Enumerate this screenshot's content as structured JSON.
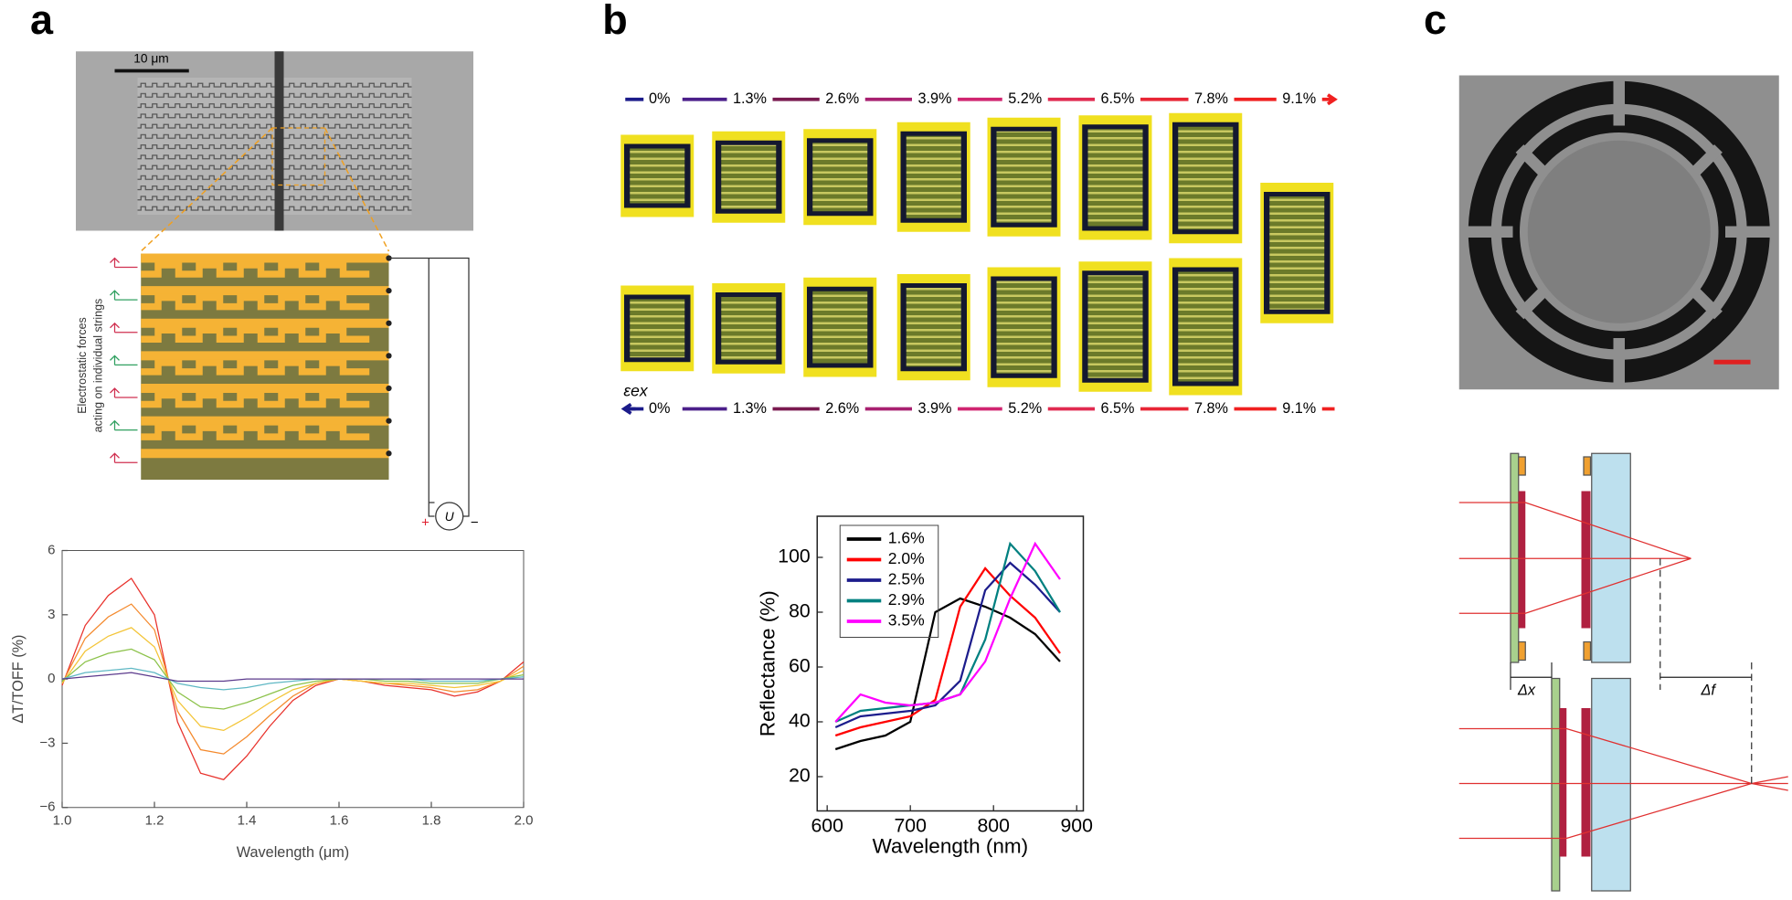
{
  "figure": {
    "panel_labels": [
      "a",
      "b",
      "c"
    ],
    "panel_a": {
      "scale_bar": "10 μm",
      "force_label": [
        "Electrostatic forces",
        "acting on individual strings"
      ],
      "source_label": "U",
      "plus": "+",
      "minus": "−"
    },
    "panel_b": {
      "strain_symbol": "εex",
      "strain_labels": [
        "0%",
        "1.3%",
        "2.6%",
        "3.9%",
        "5.2%",
        "6.5%",
        "7.8%",
        "9.1%"
      ]
    },
    "panel_c": {
      "shift_label": "Δx",
      "focus_label": "Δf"
    }
  },
  "chart_data": [
    {
      "type": "line",
      "x_label": "Wavelength (μm)",
      "y_label": "ΔT/TOFF (%)",
      "x": [
        1.0,
        1.05,
        1.1,
        1.15,
        1.2,
        1.25,
        1.3,
        1.35,
        1.4,
        1.45,
        1.5,
        1.55,
        1.6,
        1.65,
        1.7,
        1.75,
        1.8,
        1.85,
        1.9,
        1.95,
        2.0
      ],
      "xlim": [
        1,
        2
      ],
      "xticks": [
        {
          "value": 1,
          "label": "1.0"
        },
        1.2,
        1.4,
        1.6,
        1.8,
        {
          "value": 2,
          "label": "2.0"
        }
      ],
      "ylim": [
        -6,
        6
      ],
      "yticks": [
        {
          "value": -6,
          "label": "−6"
        },
        {
          "value": -3,
          "label": "−3"
        },
        0,
        3,
        6
      ],
      "series": [
        {
          "color": "#e8312b",
          "values": [
            -0.3,
            2.5,
            3.9,
            4.7,
            3.0,
            -2.0,
            -4.4,
            -4.7,
            -3.6,
            -2.2,
            -1.0,
            -0.3,
            0,
            -0.1,
            -0.3,
            -0.4,
            -0.5,
            -0.8,
            -0.6,
            -0.1,
            0.8
          ]
        },
        {
          "color": "#f4892c",
          "values": [
            -0.2,
            1.9,
            2.9,
            3.5,
            2.3,
            -1.5,
            -3.3,
            -3.5,
            -2.7,
            -1.7,
            -0.8,
            -0.2,
            0,
            -0.1,
            -0.2,
            -0.3,
            -0.4,
            -0.6,
            -0.5,
            -0.1,
            0.6
          ]
        },
        {
          "color": "#f3c436",
          "values": [
            -0.2,
            1.3,
            2.0,
            2.4,
            1.5,
            -1.0,
            -2.2,
            -2.4,
            -1.8,
            -1.1,
            -0.5,
            -0.2,
            0,
            -0.1,
            -0.2,
            -0.2,
            -0.3,
            -0.4,
            -0.3,
            -0.1,
            0.4
          ]
        },
        {
          "color": "#8cc24a",
          "values": [
            -0.1,
            0.8,
            1.2,
            1.4,
            0.9,
            -0.6,
            -1.3,
            -1.4,
            -1.1,
            -0.7,
            -0.3,
            -0.1,
            0,
            0,
            -0.1,
            -0.1,
            -0.2,
            -0.2,
            -0.2,
            0,
            0.2
          ]
        },
        {
          "color": "#5fb8c4",
          "values": [
            0,
            0.3,
            0.4,
            0.5,
            0.3,
            -0.2,
            -0.4,
            -0.5,
            -0.4,
            -0.2,
            -0.1,
            0,
            0,
            0,
            0,
            0,
            -0.1,
            -0.1,
            -0.1,
            0,
            0.1
          ]
        },
        {
          "color": "#5b3a8c",
          "values": [
            0,
            0.1,
            0.2,
            0.3,
            0.1,
            -0.1,
            -0.1,
            -0.1,
            0,
            0,
            0,
            0,
            0,
            0,
            0,
            0,
            0,
            0,
            0,
            0,
            0
          ]
        }
      ]
    },
    {
      "type": "line",
      "x_label": "Wavelength (nm)",
      "y_label": "Reflectance (%)",
      "legend": "upper left",
      "x": [
        610,
        640,
        670,
        700,
        730,
        760,
        790,
        820,
        850,
        880
      ],
      "xlim": [
        588,
        908
      ],
      "xticks": [
        600,
        700,
        800,
        900
      ],
      "ylim": [
        7.5,
        115
      ],
      "yticks": [
        20,
        40,
        60,
        80,
        100
      ],
      "series": [
        {
          "name": "1.6%",
          "color": "#000000",
          "values": [
            30,
            33,
            35,
            40,
            80,
            85,
            82,
            78,
            72,
            62
          ]
        },
        {
          "name": "2.0%",
          "color": "#ff0000",
          "values": [
            35,
            38,
            40,
            42,
            48,
            82,
            96,
            86,
            78,
            65
          ]
        },
        {
          "name": "2.5%",
          "color": "#1c1c8c",
          "values": [
            38,
            42,
            43,
            44,
            46,
            55,
            88,
            98,
            90,
            80
          ]
        },
        {
          "name": "2.9%",
          "color": "#008080",
          "values": [
            40,
            44,
            45,
            46,
            47,
            50,
            70,
            105,
            95,
            80
          ]
        },
        {
          "name": "3.5%",
          "color": "#ff00ff",
          "values": [
            40,
            50,
            47,
            46,
            47,
            50,
            62,
            85,
            105,
            92
          ]
        }
      ]
    }
  ]
}
